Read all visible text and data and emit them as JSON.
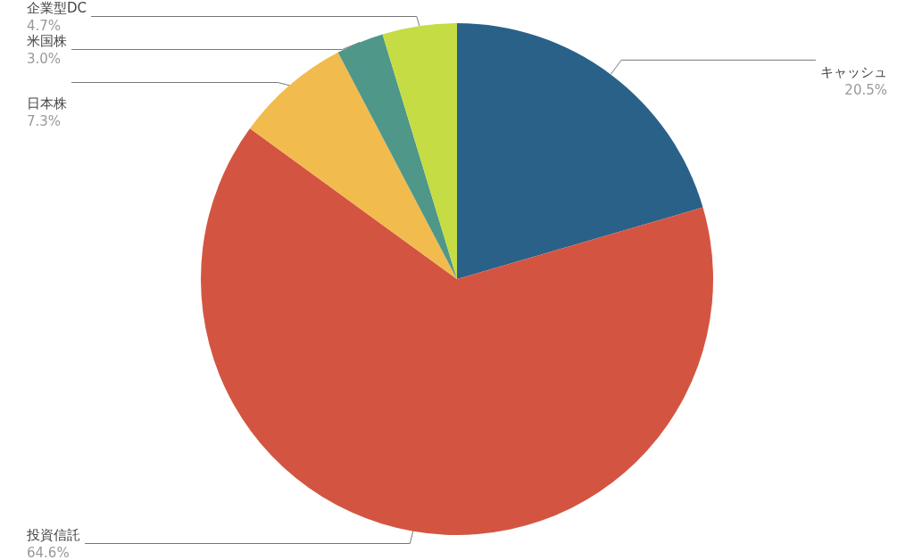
{
  "chart_data": {
    "type": "pie",
    "categories": [
      "キャッシュ",
      "投資信託",
      "日本株",
      "米国株",
      "企業型DC"
    ],
    "values": [
      20.5,
      64.6,
      7.3,
      3.0,
      4.7
    ],
    "colors": [
      "#2a6189",
      "#d35541",
      "#f2bb4e",
      "#4e9789",
      "#c5dc44"
    ],
    "value_labels": [
      "20.5%",
      "64.6%",
      "7.3%",
      "3.0%",
      "4.7%"
    ],
    "legend": false
  }
}
